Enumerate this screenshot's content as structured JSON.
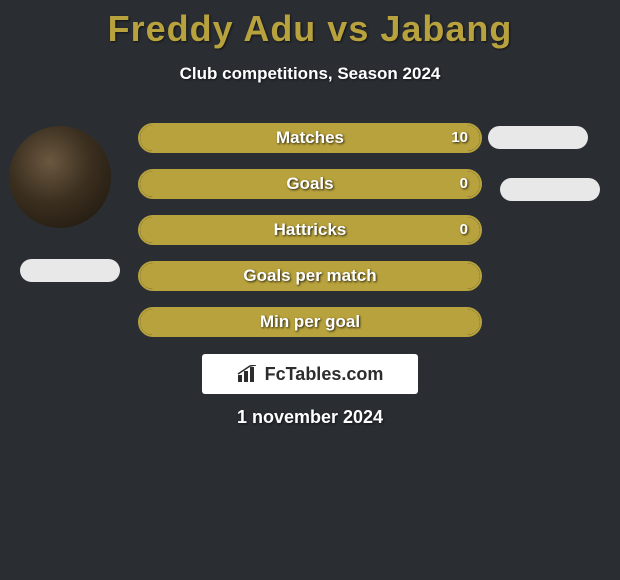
{
  "title": {
    "text": "Freddy Adu vs Jabang",
    "color": "#b8a23d",
    "fontsize": 36
  },
  "subtitle": {
    "text": "Club competitions, Season 2024",
    "fontsize": 17
  },
  "background_color": "#2a2e33",
  "bar_style": {
    "border_color": "#b8a23d",
    "fill_color": "#b8a23d",
    "empty_color": "transparent",
    "height": 30,
    "radius": 16,
    "label_fontsize": 17
  },
  "bars": [
    {
      "label": "Matches",
      "value": "10",
      "fill_pct": 100
    },
    {
      "label": "Goals",
      "value": "0",
      "fill_pct": 100
    },
    {
      "label": "Hattricks",
      "value": "0",
      "fill_pct": 100
    },
    {
      "label": "Goals per match",
      "value": "",
      "fill_pct": 100
    },
    {
      "label": "Min per goal",
      "value": "",
      "fill_pct": 100
    }
  ],
  "avatar": {
    "left_visible": true,
    "right_visible": false
  },
  "pills": {
    "left": true,
    "right1": true,
    "right2": true,
    "color": "#e8e8e8"
  },
  "brand": {
    "text": "FcTables.com",
    "icon": "bar-chart-icon",
    "fontsize": 18
  },
  "date": {
    "text": "1 november 2024",
    "fontsize": 18
  }
}
